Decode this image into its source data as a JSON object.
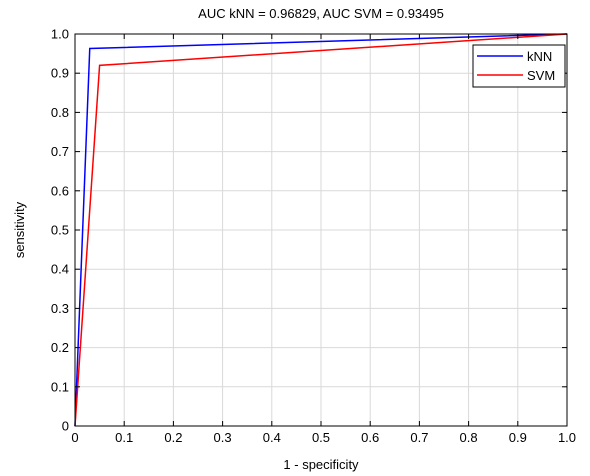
{
  "chart_data": {
    "type": "line",
    "title": "AUC kNN = 0.96829, AUC SVM = 0.93495",
    "xlabel": "1 - specificity",
    "ylabel": "sensitivity",
    "xlim": [
      0,
      1
    ],
    "ylim": [
      0,
      1
    ],
    "xticks": [
      0,
      0.1,
      0.2,
      0.3,
      0.4,
      0.5,
      0.6,
      0.7,
      0.8,
      0.9,
      1
    ],
    "yticks": [
      0,
      0.1,
      0.2,
      0.3,
      0.4,
      0.5,
      0.6,
      0.7,
      0.8,
      0.9,
      1
    ],
    "xtick_labels": [
      "0",
      "0.1",
      "0.2",
      "0.3",
      "0.4",
      "0.5",
      "0.6",
      "0.7",
      "0.8",
      "0.9",
      "1.0"
    ],
    "ytick_labels": [
      "0",
      "0.1",
      "0.2",
      "0.3",
      "0.4",
      "0.5",
      "0.6",
      "0.7",
      "0.8",
      "0.9",
      "1.0"
    ],
    "grid": true,
    "legend_position": "top-right",
    "series": [
      {
        "name": "kNN",
        "color": "#0000ff",
        "x": [
          0,
          0.03,
          1
        ],
        "y": [
          0,
          0.963,
          1
        ]
      },
      {
        "name": "SVM",
        "color": "#ff0000",
        "x": [
          0,
          0.05,
          1
        ],
        "y": [
          0,
          0.92,
          1
        ]
      }
    ]
  }
}
